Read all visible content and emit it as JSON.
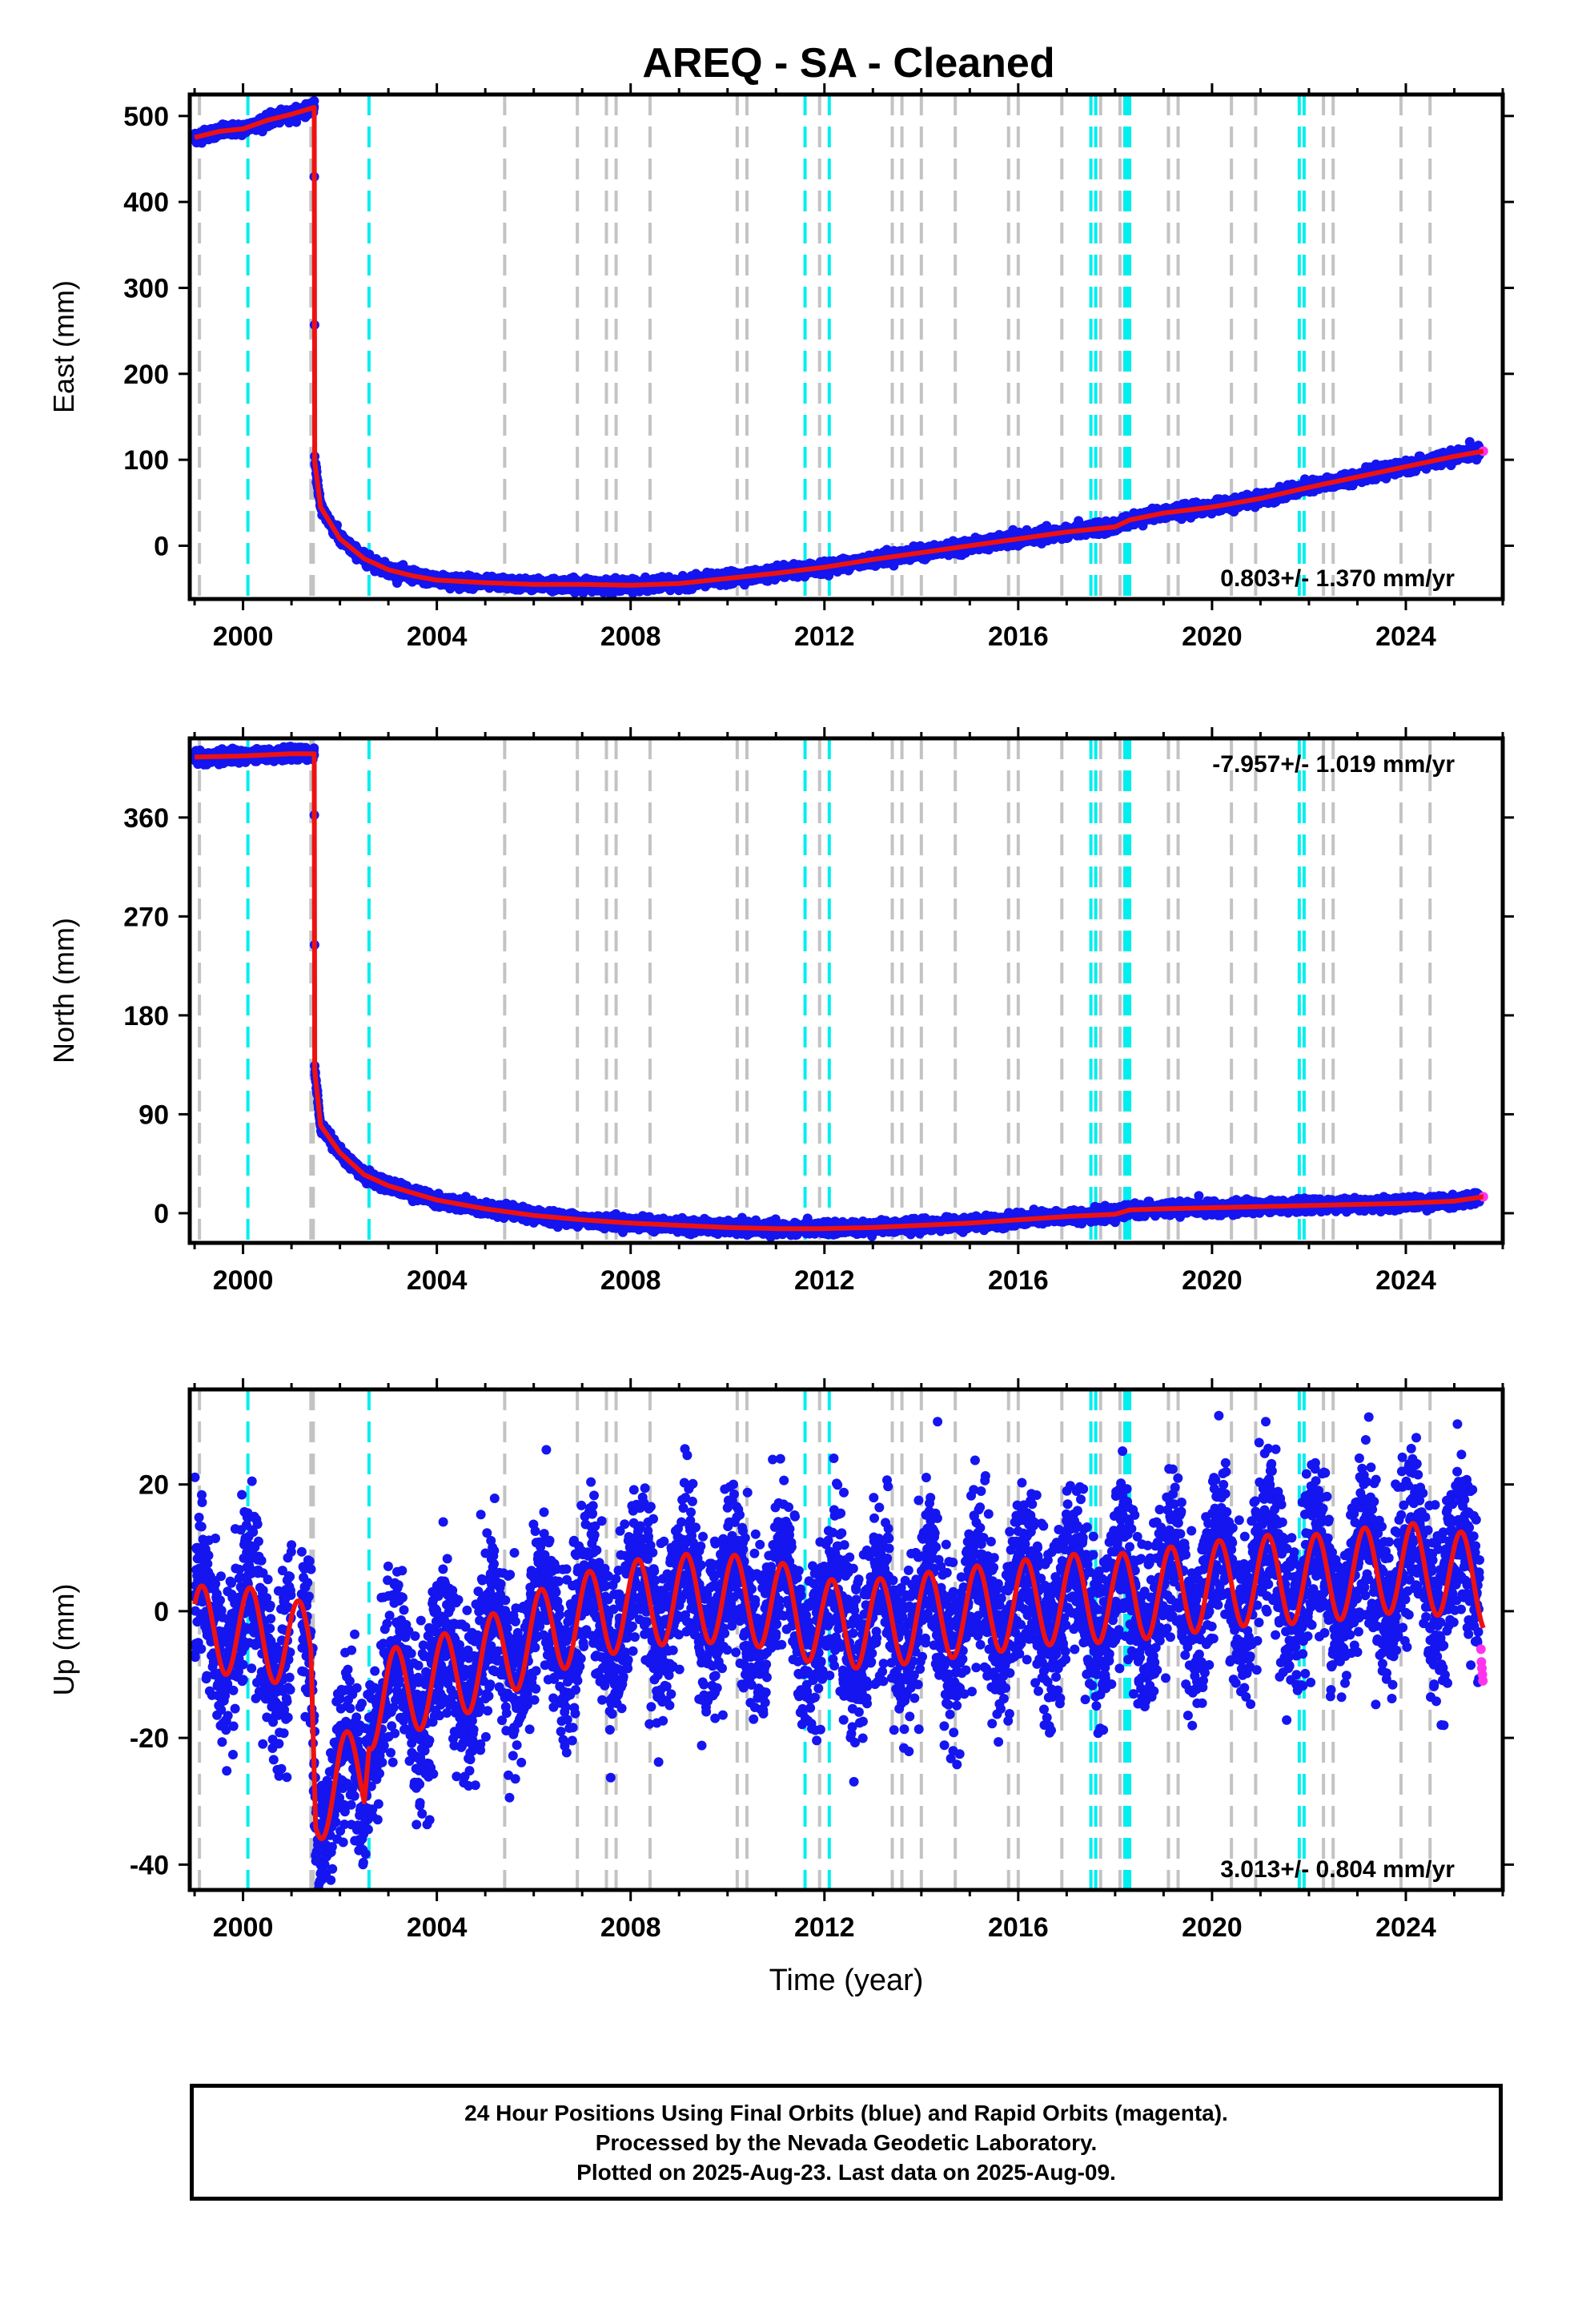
{
  "title": "AREQ  - SA - Cleaned",
  "colors": {
    "final": "#1515f0",
    "rapid": "#ff33ee",
    "model": "#ee1111",
    "gray_line": "#c3c3c3",
    "cyan_line": "#00eeee",
    "frame": "#000000"
  },
  "chart_data": [
    {
      "type": "scatter",
      "ylabel": "East (mm)",
      "xlabel": "",
      "xlim": [
        1998.9,
        2026.0
      ],
      "ylim": [
        -62,
        525
      ],
      "yticks": [
        0,
        100,
        200,
        300,
        400,
        500
      ],
      "xticks": [
        "2000",
        "2004",
        "2008",
        "2012",
        "2016",
        "2020",
        "2024"
      ],
      "rate_label": "0.803+/- 1.370 mm/yr",
      "rate_position": "bottom-right",
      "series": [
        {
          "points": [
            [
              1999.0,
              475
            ],
            [
              1999.5,
              482
            ],
            [
              2000.0,
              485
            ],
            [
              2000.5,
              495
            ],
            [
              2001.0,
              502
            ],
            [
              2001.47,
              510
            ],
            [
              2001.48,
              98
            ],
            [
              2001.6,
              45
            ],
            [
              2002.0,
              8
            ],
            [
              2002.5,
              -15
            ],
            [
              2003.0,
              -28
            ],
            [
              2003.5,
              -35
            ],
            [
              2004.0,
              -40
            ],
            [
              2005.0,
              -43
            ],
            [
              2006.0,
              -45
            ],
            [
              2007.0,
              -45
            ],
            [
              2008.0,
              -46
            ],
            [
              2009.0,
              -44
            ],
            [
              2010.0,
              -38
            ],
            [
              2011.0,
              -32
            ],
            [
              2012.0,
              -25
            ],
            [
              2013.0,
              -16
            ],
            [
              2014.0,
              -8
            ],
            [
              2015.0,
              0
            ],
            [
              2016.0,
              8
            ],
            [
              2017.0,
              16
            ],
            [
              2018.0,
              22
            ],
            [
              2018.3,
              30
            ],
            [
              2019.0,
              38
            ],
            [
              2020.0,
              45
            ],
            [
              2021.0,
              55
            ],
            [
              2022.0,
              68
            ],
            [
              2023.0,
              80
            ],
            [
              2024.0,
              92
            ],
            [
              2025.0,
              104
            ],
            [
              2025.6,
              110
            ]
          ]
        }
      ]
    },
    {
      "type": "scatter",
      "ylabel": "North (mm)",
      "xlabel": "",
      "xlim": [
        1998.9,
        2026.0
      ],
      "ylim": [
        -27,
        432
      ],
      "yticks": [
        0,
        90,
        180,
        270,
        360
      ],
      "xticks": [
        "2000",
        "2004",
        "2008",
        "2012",
        "2016",
        "2020",
        "2024"
      ],
      "rate_label": "-7.957+/- 1.019 mm/yr",
      "rate_position": "top-right",
      "series": [
        {
          "points": [
            [
              1999.0,
              415
            ],
            [
              2000.0,
              416
            ],
            [
              2001.0,
              418
            ],
            [
              2001.47,
              418
            ],
            [
              2001.48,
              130
            ],
            [
              2001.6,
              80
            ],
            [
              2002.0,
              55
            ],
            [
              2002.5,
              35
            ],
            [
              2003.0,
              25
            ],
            [
              2004.0,
              12
            ],
            [
              2005.0,
              4
            ],
            [
              2006.0,
              -2
            ],
            [
              2007.0,
              -6
            ],
            [
              2008.0,
              -9
            ],
            [
              2009.0,
              -11
            ],
            [
              2010.0,
              -13
            ],
            [
              2011.0,
              -14
            ],
            [
              2012.0,
              -14
            ],
            [
              2013.0,
              -13
            ],
            [
              2014.0,
              -11
            ],
            [
              2015.0,
              -9
            ],
            [
              2016.0,
              -6
            ],
            [
              2017.0,
              -3
            ],
            [
              2018.0,
              -1
            ],
            [
              2018.3,
              3
            ],
            [
              2019.0,
              4
            ],
            [
              2020.0,
              5
            ],
            [
              2021.0,
              6
            ],
            [
              2022.0,
              7
            ],
            [
              2023.0,
              8
            ],
            [
              2024.0,
              9
            ],
            [
              2025.0,
              11
            ],
            [
              2025.6,
              15
            ]
          ]
        }
      ]
    },
    {
      "type": "scatter",
      "ylabel": "Up (mm)",
      "xlabel": "Time (year)",
      "xlim": [
        1998.9,
        2026.0
      ],
      "ylim": [
        -44,
        35
      ],
      "yticks": [
        -40,
        -20,
        0,
        20
      ],
      "xticks": [
        "2000",
        "2004",
        "2008",
        "2012",
        "2016",
        "2020",
        "2024"
      ],
      "rate_label": "3.013+/- 0.804 mm/yr",
      "rate_position": "bottom-right",
      "seasonal_amplitude_mm": 7,
      "series": [
        {
          "points": [
            [
              1999.0,
              -3
            ],
            [
              2000.0,
              -3
            ],
            [
              2001.0,
              -5
            ],
            [
              2001.4,
              -6
            ],
            [
              2001.5,
              -30
            ],
            [
              2002.0,
              -26
            ],
            [
              2002.5,
              -26
            ],
            [
              2002.6,
              -15
            ],
            [
              2003.0,
              -13
            ],
            [
              2004.0,
              -11
            ],
            [
              2005.0,
              -8
            ],
            [
              2006.0,
              -4
            ],
            [
              2007.0,
              -1
            ],
            [
              2008.0,
              1
            ],
            [
              2009.0,
              2
            ],
            [
              2010.0,
              2
            ],
            [
              2011.0,
              1
            ],
            [
              2012.0,
              -2
            ],
            [
              2013.0,
              -2
            ],
            [
              2014.0,
              -1
            ],
            [
              2015.0,
              0
            ],
            [
              2016.0,
              1
            ],
            [
              2017.0,
              2
            ],
            [
              2018.0,
              2
            ],
            [
              2019.0,
              3
            ],
            [
              2020.0,
              4
            ],
            [
              2021.0,
              5
            ],
            [
              2022.0,
              5
            ],
            [
              2023.0,
              6
            ],
            [
              2024.0,
              7
            ],
            [
              2025.0,
              6
            ],
            [
              2025.6,
              4
            ]
          ]
        }
      ],
      "rapid_points": [
        [
          2025.55,
          -6
        ],
        [
          2025.56,
          -8
        ],
        [
          2025.57,
          -9
        ],
        [
          2025.58,
          -10
        ],
        [
          2025.59,
          -11
        ]
      ]
    }
  ],
  "gray_lines": [
    1999.1,
    2001.4,
    2001.42,
    2001.45,
    2005.4,
    2006.9,
    2007.5,
    2007.7,
    2008.4,
    2010.2,
    2010.4,
    2011.9,
    2013.4,
    2013.6,
    2014.0,
    2014.7,
    2015.8,
    2016.0,
    2016.9,
    2017.7,
    2018.1,
    2019.1,
    2019.3,
    2020.4,
    2020.9,
    2022.3,
    2022.5,
    2023.9,
    2024.5
  ],
  "cyan_lines": [
    2000.1,
    2002.6,
    2011.6,
    2012.1,
    2017.5,
    2017.6,
    2018.2,
    2018.25,
    2018.3,
    2021.8,
    2021.9
  ],
  "footer": {
    "line1": "24 Hour Positions Using Final Orbits (blue) and Rapid Orbits (magenta).",
    "line2": "Processed by the Nevada Geodetic Laboratory.",
    "line3": "Plotted on 2025-Aug-23. Last data on 2025-Aug-09."
  }
}
